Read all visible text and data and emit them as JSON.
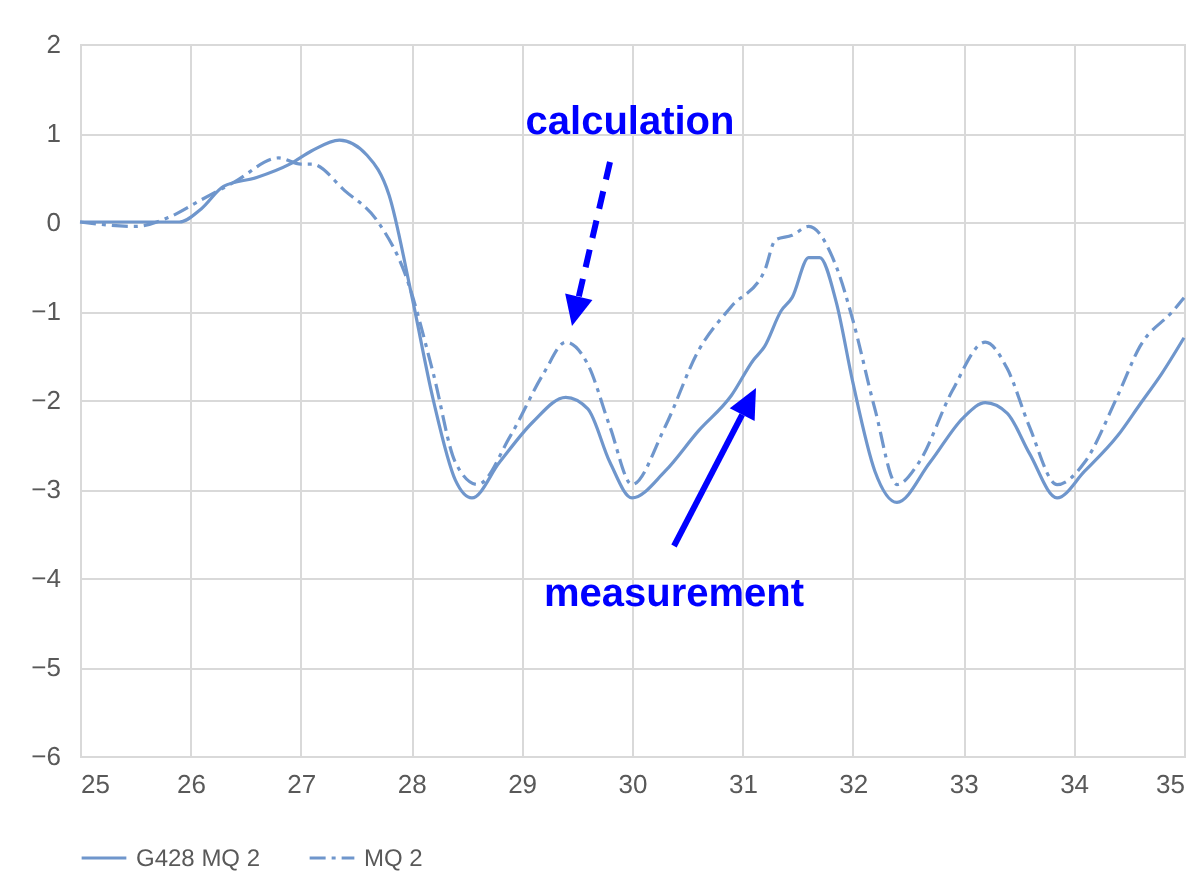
{
  "chart_data": {
    "type": "line",
    "xlim": [
      25,
      35
    ],
    "xticks": [
      25,
      26,
      27,
      28,
      29,
      30,
      31,
      32,
      33,
      34,
      35
    ],
    "ylim": [
      -6,
      2
    ],
    "yticks": [
      -6,
      -5,
      -4,
      -3,
      -2,
      -1,
      0,
      1,
      2
    ],
    "grid": true,
    "legend": "bottom",
    "annotations": [
      "calculation",
      "measurement"
    ],
    "series": [
      {
        "name": "G428 MQ 2",
        "color": "#6f96cc",
        "line_style": "solid",
        "x": [
          25,
          25.5,
          25.9,
          26.1,
          26.3,
          26.6,
          26.9,
          27.1,
          27.35,
          27.6,
          27.8,
          28.0,
          28.2,
          28.4,
          28.55,
          28.8,
          29.1,
          29.4,
          29.6,
          29.8,
          30.0,
          30.3,
          30.6,
          30.9,
          31.1,
          31.2,
          31.35,
          31.45,
          31.6,
          31.7,
          31.85,
          32.0,
          32.2,
          32.4,
          32.7,
          33.0,
          33.2,
          33.4,
          33.6,
          33.85,
          34.1,
          34.4,
          34.6,
          34.8,
          35
        ],
        "values": [
          0,
          0,
          0,
          0.15,
          0.4,
          0.5,
          0.65,
          0.8,
          0.92,
          0.75,
          0.3,
          -0.8,
          -2.0,
          -2.9,
          -3.1,
          -2.7,
          -2.25,
          -1.97,
          -2.1,
          -2.7,
          -3.1,
          -2.8,
          -2.35,
          -1.95,
          -1.55,
          -1.4,
          -1.0,
          -0.85,
          -0.4,
          -0.4,
          -0.9,
          -1.8,
          -2.8,
          -3.15,
          -2.7,
          -2.2,
          -2.03,
          -2.15,
          -2.6,
          -3.1,
          -2.8,
          -2.4,
          -2.05,
          -1.7,
          -1.3
        ]
      },
      {
        "name": "MQ 2",
        "color": "#6f96cc",
        "line_style": "dashed",
        "x": [
          25,
          25.5,
          25.8,
          26.1,
          26.4,
          26.8,
          27.0,
          27.1,
          27.4,
          27.7,
          27.95,
          28.2,
          28.4,
          28.6,
          28.9,
          29.2,
          29.4,
          29.6,
          29.8,
          30.0,
          30.3,
          30.6,
          30.9,
          31.2,
          31.3,
          31.45,
          31.6,
          31.85,
          32.0,
          32.2,
          32.4,
          32.6,
          32.9,
          33.2,
          33.4,
          33.6,
          33.85,
          34.1,
          34.4,
          34.6,
          34.9,
          35
        ],
        "values": [
          0,
          -0.05,
          0.05,
          0.25,
          0.45,
          0.72,
          0.65,
          0.65,
          0.35,
          0.0,
          -0.6,
          -1.7,
          -2.7,
          -2.95,
          -2.4,
          -1.7,
          -1.35,
          -1.6,
          -2.3,
          -2.95,
          -2.3,
          -1.45,
          -0.95,
          -0.55,
          -0.2,
          -0.15,
          -0.05,
          -0.5,
          -1.1,
          -2.1,
          -2.95,
          -2.7,
          -1.9,
          -1.35,
          -1.65,
          -2.3,
          -2.95,
          -2.7,
          -1.95,
          -1.4,
          -1.0,
          -0.85
        ]
      }
    ]
  }
}
